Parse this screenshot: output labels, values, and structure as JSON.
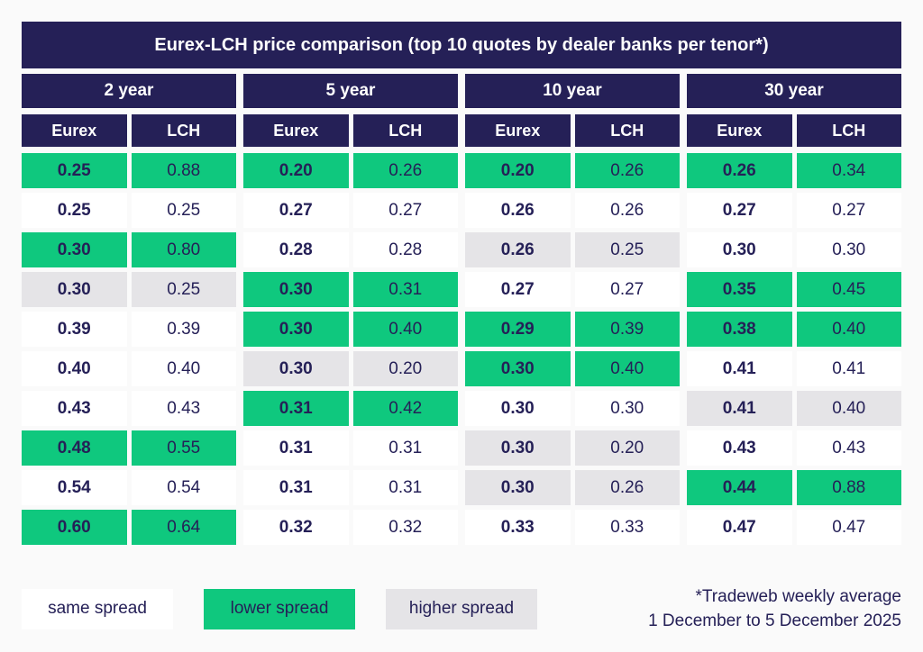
{
  "title": "Eurex-LCH price comparison (top 10 quotes by dealer banks per tenor*)",
  "colors": {
    "navy": "#252057",
    "green": "#0FC87E",
    "gray": "#E5E4E7",
    "white": "#FFFFFF",
    "background": "#FAFAFA",
    "text": "#252057"
  },
  "legend": [
    {
      "label": "same spread",
      "status": "same"
    },
    {
      "label": "lower spread",
      "status": "lower"
    },
    {
      "label": "higher spread",
      "status": "higher"
    }
  ],
  "footnote": {
    "line1": "*Tradeweb weekly average",
    "line2": "1 December to 5 December 2025"
  },
  "chart_data": {
    "type": "table",
    "title": "Eurex-LCH price comparison (top 10 quotes by dealer banks per tenor*)",
    "columns": [
      "Eurex",
      "LCH"
    ],
    "spread_legend": {
      "same": "same spread",
      "lower": "lower spread",
      "higher": "higher spread"
    },
    "groups": [
      {
        "tenor": "2 year",
        "rows": [
          {
            "eurex": "0.25",
            "lch": "0.88",
            "spread": "lower"
          },
          {
            "eurex": "0.25",
            "lch": "0.25",
            "spread": "same"
          },
          {
            "eurex": "0.30",
            "lch": "0.80",
            "spread": "lower"
          },
          {
            "eurex": "0.30",
            "lch": "0.25",
            "spread": "higher"
          },
          {
            "eurex": "0.39",
            "lch": "0.39",
            "spread": "same"
          },
          {
            "eurex": "0.40",
            "lch": "0.40",
            "spread": "same"
          },
          {
            "eurex": "0.43",
            "lch": "0.43",
            "spread": "same"
          },
          {
            "eurex": "0.48",
            "lch": "0.55",
            "spread": "lower"
          },
          {
            "eurex": "0.54",
            "lch": "0.54",
            "spread": "same"
          },
          {
            "eurex": "0.60",
            "lch": "0.64",
            "spread": "lower"
          }
        ]
      },
      {
        "tenor": "5 year",
        "rows": [
          {
            "eurex": "0.20",
            "lch": "0.26",
            "spread": "lower"
          },
          {
            "eurex": "0.27",
            "lch": "0.27",
            "spread": "same"
          },
          {
            "eurex": "0.28",
            "lch": "0.28",
            "spread": "same"
          },
          {
            "eurex": "0.30",
            "lch": "0.31",
            "spread": "lower"
          },
          {
            "eurex": "0.30",
            "lch": "0.40",
            "spread": "lower"
          },
          {
            "eurex": "0.30",
            "lch": "0.20",
            "spread": "higher"
          },
          {
            "eurex": "0.31",
            "lch": "0.42",
            "spread": "lower"
          },
          {
            "eurex": "0.31",
            "lch": "0.31",
            "spread": "same"
          },
          {
            "eurex": "0.31",
            "lch": "0.31",
            "spread": "same"
          },
          {
            "eurex": "0.32",
            "lch": "0.32",
            "spread": "same"
          }
        ]
      },
      {
        "tenor": "10 year",
        "rows": [
          {
            "eurex": "0.20",
            "lch": "0.26",
            "spread": "lower"
          },
          {
            "eurex": "0.26",
            "lch": "0.26",
            "spread": "same"
          },
          {
            "eurex": "0.26",
            "lch": "0.25",
            "spread": "higher"
          },
          {
            "eurex": "0.27",
            "lch": "0.27",
            "spread": "same"
          },
          {
            "eurex": "0.29",
            "lch": "0.39",
            "spread": "lower"
          },
          {
            "eurex": "0.30",
            "lch": "0.40",
            "spread": "lower"
          },
          {
            "eurex": "0.30",
            "lch": "0.30",
            "spread": "same"
          },
          {
            "eurex": "0.30",
            "lch": "0.20",
            "spread": "higher"
          },
          {
            "eurex": "0.30",
            "lch": "0.26",
            "spread": "higher"
          },
          {
            "eurex": "0.33",
            "lch": "0.33",
            "spread": "same"
          }
        ]
      },
      {
        "tenor": "30 year",
        "rows": [
          {
            "eurex": "0.26",
            "lch": "0.34",
            "spread": "lower"
          },
          {
            "eurex": "0.27",
            "lch": "0.27",
            "spread": "same"
          },
          {
            "eurex": "0.30",
            "lch": "0.30",
            "spread": "same"
          },
          {
            "eurex": "0.35",
            "lch": "0.45",
            "spread": "lower"
          },
          {
            "eurex": "0.38",
            "lch": "0.40",
            "spread": "lower"
          },
          {
            "eurex": "0.41",
            "lch": "0.41",
            "spread": "same"
          },
          {
            "eurex": "0.41",
            "lch": "0.40",
            "spread": "higher"
          },
          {
            "eurex": "0.43",
            "lch": "0.43",
            "spread": "same"
          },
          {
            "eurex": "0.44",
            "lch": "0.88",
            "spread": "lower"
          },
          {
            "eurex": "0.47",
            "lch": "0.47",
            "spread": "same"
          }
        ]
      }
    ]
  }
}
